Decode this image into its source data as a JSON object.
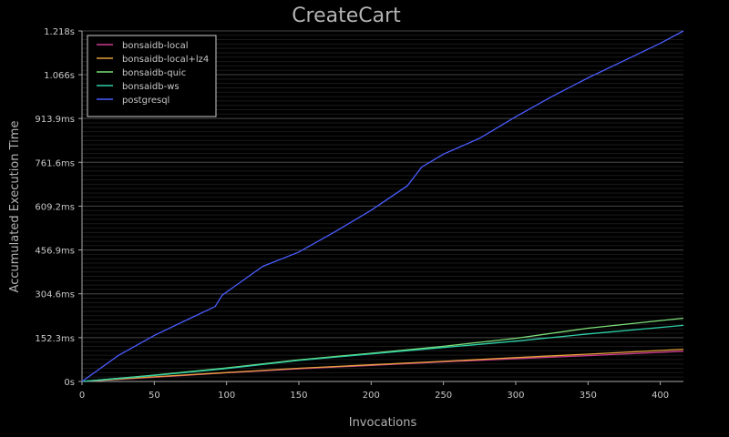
{
  "chart_data": {
    "type": "line",
    "title": "CreateCart",
    "xlabel": "Invocations",
    "ylabel": "Accumulated Execution Time",
    "xlim": [
      0,
      416
    ],
    "ylim": [
      0,
      1.218
    ],
    "x_ticks": [
      0,
      50,
      100,
      150,
      200,
      250,
      300,
      350,
      400
    ],
    "y_ticks": [
      {
        "value": 0,
        "label": "0s"
      },
      {
        "value": 0.1523,
        "label": "152.3ms"
      },
      {
        "value": 0.3046,
        "label": "304.6ms"
      },
      {
        "value": 0.4569,
        "label": "456.9ms"
      },
      {
        "value": 0.6092,
        "label": "609.2ms"
      },
      {
        "value": 0.7616,
        "label": "761.6ms"
      },
      {
        "value": 0.9139,
        "label": "913.9ms"
      },
      {
        "value": 1.066,
        "label": "1.066s"
      },
      {
        "value": 1.218,
        "label": "1.218s"
      }
    ],
    "grid": true,
    "legend_position": "top-left",
    "series": [
      {
        "name": "bonsaidb-local",
        "color": "#cc3a8f",
        "x": [
          0,
          50,
          100,
          150,
          200,
          250,
          300,
          350,
          416
        ],
        "y": [
          0,
          0.015,
          0.03,
          0.044,
          0.056,
          0.068,
          0.079,
          0.09,
          0.105
        ]
      },
      {
        "name": "bonsaidb-local+lz4",
        "color": "#e5a03a",
        "x": [
          0,
          50,
          100,
          150,
          200,
          250,
          300,
          350,
          416
        ],
        "y": [
          0,
          0.016,
          0.031,
          0.046,
          0.058,
          0.07,
          0.083,
          0.095,
          0.112
        ]
      },
      {
        "name": "bonsaidb-quic",
        "color": "#7ee07a",
        "x": [
          0,
          50,
          100,
          150,
          200,
          250,
          300,
          350,
          416
        ],
        "y": [
          0,
          0.022,
          0.047,
          0.075,
          0.098,
          0.122,
          0.15,
          0.185,
          0.22
        ]
      },
      {
        "name": "bonsaidb-ws",
        "color": "#2ed0a8",
        "x": [
          0,
          50,
          100,
          150,
          200,
          250,
          300,
          350,
          416
        ],
        "y": [
          0,
          0.021,
          0.045,
          0.073,
          0.096,
          0.118,
          0.14,
          0.165,
          0.195
        ]
      },
      {
        "name": "postgresql",
        "color": "#4a5cff",
        "x": [
          0,
          25,
          50,
          75,
          92,
          97,
          125,
          150,
          175,
          200,
          225,
          235,
          250,
          275,
          300,
          325,
          350,
          375,
          400,
          416
        ],
        "y": [
          0,
          0.09,
          0.16,
          0.22,
          0.26,
          0.3,
          0.4,
          0.45,
          0.52,
          0.595,
          0.68,
          0.745,
          0.79,
          0.845,
          0.92,
          0.99,
          1.055,
          1.115,
          1.175,
          1.218
        ]
      }
    ]
  }
}
